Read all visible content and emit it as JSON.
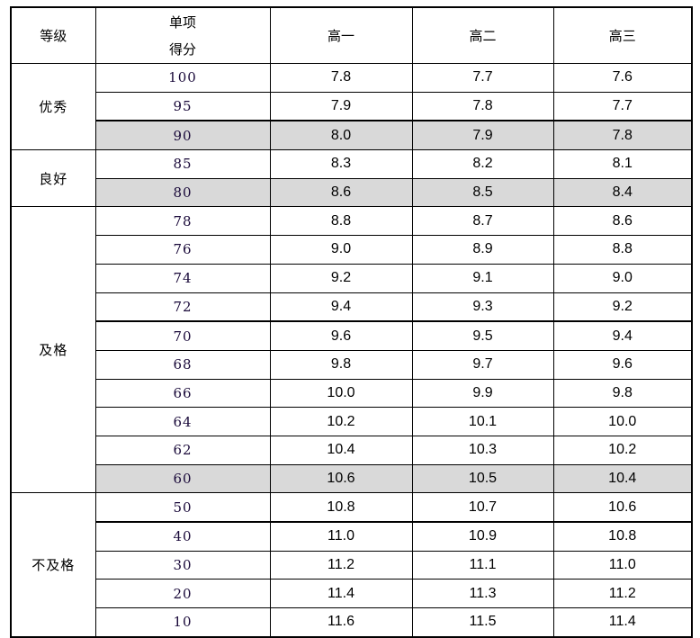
{
  "headers": {
    "grade": "等级",
    "score_line1": "单项",
    "score_line2": "得分",
    "g1": "高一",
    "g2": "高二",
    "g3": "高三"
  },
  "groups": [
    {
      "grade": "优秀",
      "rows": [
        {
          "score": "100",
          "g1": "7.8",
          "g2": "7.7",
          "g3": "7.6"
        },
        {
          "score": "95",
          "g1": "7.9",
          "g2": "7.8",
          "g3": "7.7"
        },
        {
          "score": "90",
          "g1": "8.0",
          "g2": "7.9",
          "g3": "7.8",
          "highlight": true
        }
      ]
    },
    {
      "grade": "良好",
      "rows": [
        {
          "score": "85",
          "g1": "8.3",
          "g2": "8.2",
          "g3": "8.1"
        },
        {
          "score": "80",
          "g1": "8.6",
          "g2": "8.5",
          "g3": "8.4",
          "highlight": true
        }
      ]
    },
    {
      "grade": "及格",
      "rows": [
        {
          "score": "78",
          "g1": "8.8",
          "g2": "8.7",
          "g3": "8.6"
        },
        {
          "score": "76",
          "g1": "9.0",
          "g2": "8.9",
          "g3": "8.8"
        },
        {
          "score": "74",
          "g1": "9.2",
          "g2": "9.1",
          "g3": "9.0"
        },
        {
          "score": "72",
          "g1": "9.4",
          "g2": "9.3",
          "g3": "9.2"
        },
        {
          "score": "70",
          "g1": "9.6",
          "g2": "9.5",
          "g3": "9.4"
        },
        {
          "score": "68",
          "g1": "9.8",
          "g2": "9.7",
          "g3": "9.6"
        },
        {
          "score": "66",
          "g1": "10.0",
          "g2": "9.9",
          "g3": "9.8"
        },
        {
          "score": "64",
          "g1": "10.2",
          "g2": "10.1",
          "g3": "10.0"
        },
        {
          "score": "62",
          "g1": "10.4",
          "g2": "10.3",
          "g3": "10.2"
        },
        {
          "score": "60",
          "g1": "10.6",
          "g2": "10.5",
          "g3": "10.4",
          "highlight": true
        }
      ]
    },
    {
      "grade": "不及格",
      "rows": [
        {
          "score": "50",
          "g1": "10.8",
          "g2": "10.7",
          "g3": "10.6"
        },
        {
          "score": "40",
          "g1": "11.0",
          "g2": "10.9",
          "g3": "10.8"
        },
        {
          "score": "30",
          "g1": "11.2",
          "g2": "11.1",
          "g3": "11.0"
        },
        {
          "score": "20",
          "g1": "11.4",
          "g2": "11.3",
          "g3": "11.2"
        },
        {
          "score": "10",
          "g1": "11.6",
          "g2": "11.5",
          "g3": "11.4"
        }
      ]
    }
  ],
  "highlight_color": "#d9d9d9"
}
